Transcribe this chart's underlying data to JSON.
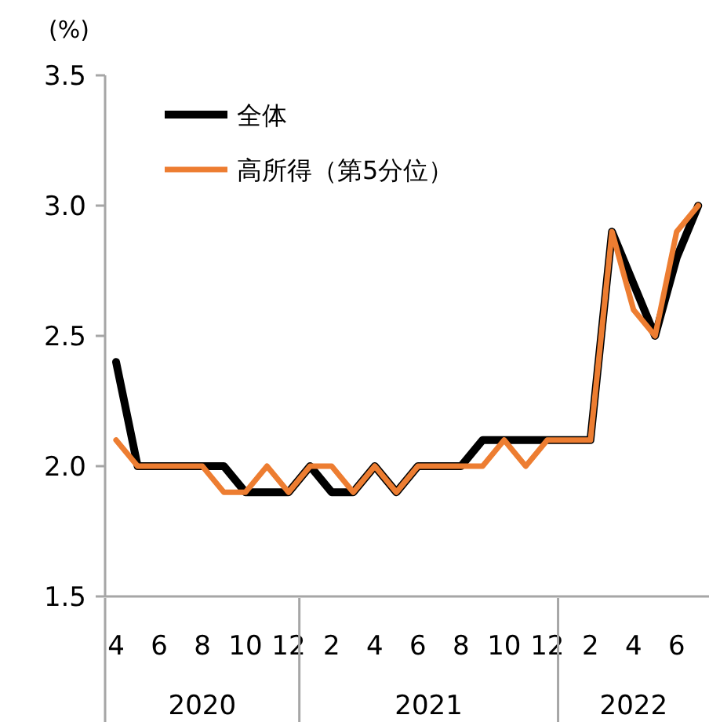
{
  "chart_data": {
    "type": "line",
    "ylabel": "(%)",
    "categories": [
      "4",
      null,
      "6",
      null,
      "8",
      null,
      "10",
      null,
      "12",
      null,
      "2",
      null,
      "4",
      null,
      "6",
      null,
      "8",
      null,
      "10",
      null,
      "12",
      null,
      "2",
      null,
      "4",
      null,
      "6",
      null
    ],
    "annotations": [
      "2020",
      "2021",
      "2022"
    ],
    "ylim": [
      1.5,
      3.5
    ],
    "yticks": [
      {
        "value": 1.5,
        "label": "1.5"
      },
      {
        "value": 2,
        "label": "2.0"
      },
      {
        "value": 2.5,
        "label": "2.5"
      },
      {
        "value": 3,
        "label": "3.0"
      },
      {
        "value": 3.5,
        "label": "3.5"
      }
    ],
    "grid": false,
    "legend": "top left",
    "marker": "none",
    "line_style": "solid",
    "series": [
      {
        "name": "全体",
        "color": "#000000",
        "values": [
          2.4,
          2.0,
          2.0,
          2.0,
          2.0,
          2.0,
          1.9,
          1.9,
          1.9,
          2.0,
          1.9,
          1.9,
          2.0,
          1.9,
          2.0,
          2.0,
          2.0,
          2.1,
          2.1,
          2.1,
          2.1,
          2.1,
          2.1,
          2.9,
          2.7,
          2.5,
          2.8,
          3.0
        ]
      },
      {
        "name": "高所得（第5分位）",
        "color": "#ed7d31",
        "values": [
          2.1,
          2.0,
          2.0,
          2.0,
          2.0,
          1.9,
          1.9,
          2.0,
          1.9,
          2.0,
          2.0,
          1.9,
          2.0,
          1.9,
          2.0,
          2.0,
          2.0,
          2.0,
          2.1,
          2.0,
          2.1,
          2.1,
          2.1,
          2.9,
          2.6,
          2.5,
          2.9,
          3.0
        ]
      }
    ]
  }
}
